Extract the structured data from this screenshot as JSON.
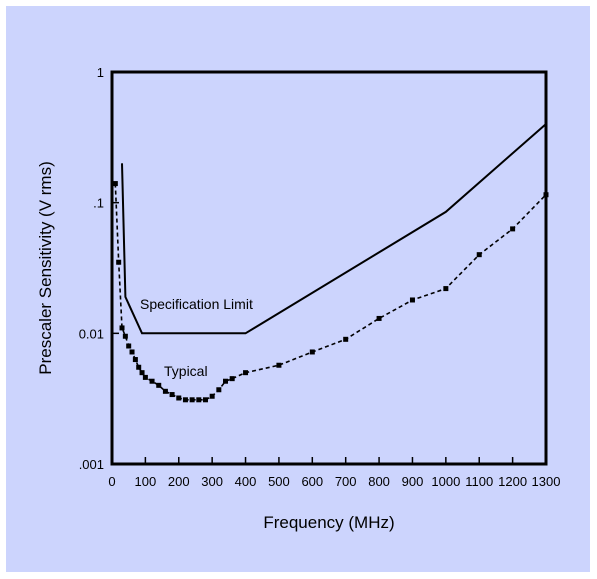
{
  "colors": {
    "background": "#ccd4fd",
    "page": "#ffffff",
    "axis": "#000000",
    "series": "#000000"
  },
  "chart_data": {
    "type": "line",
    "title": "",
    "xlabel": "Frequency (MHz)",
    "ylabel": "Prescaler Sensitivity (V rms)",
    "xlim": [
      0,
      1300
    ],
    "ylim": [
      0.001,
      1
    ],
    "y_scale": "log",
    "grid": false,
    "x_ticks": [
      0,
      100,
      200,
      300,
      400,
      500,
      600,
      700,
      800,
      900,
      1000,
      1100,
      1200,
      1300
    ],
    "x_tick_labels": [
      "0",
      "100",
      "200",
      "300",
      "400",
      "500",
      "600",
      "700",
      "800",
      "900",
      "1000",
      "1100",
      "1200",
      "1300"
    ],
    "y_ticks": [
      0.001,
      0.01,
      0.1,
      1
    ],
    "y_tick_labels": [
      ".001",
      "0.01",
      ".1",
      "1"
    ],
    "series": [
      {
        "name": "Specification Limit",
        "style": "solid",
        "marker": "none",
        "x": [
          30,
          40,
          90,
          400,
          1000,
          1300
        ],
        "y": [
          0.2,
          0.019,
          0.01,
          0.01,
          0.085,
          0.4
        ]
      },
      {
        "name": "Typical",
        "style": "dashed",
        "marker": "square",
        "x": [
          10,
          20,
          30,
          40,
          50,
          60,
          70,
          80,
          90,
          100,
          120,
          140,
          160,
          180,
          200,
          220,
          240,
          260,
          280,
          300,
          320,
          340,
          360,
          400,
          500,
          600,
          700,
          800,
          900,
          1000,
          1100,
          1200,
          1300
        ],
        "y": [
          0.14,
          0.035,
          0.011,
          0.0095,
          0.008,
          0.0072,
          0.0063,
          0.0055,
          0.005,
          0.0046,
          0.0043,
          0.004,
          0.0036,
          0.0034,
          0.0032,
          0.0031,
          0.0031,
          0.0031,
          0.0031,
          0.0033,
          0.0037,
          0.0043,
          0.0045,
          0.005,
          0.0057,
          0.0072,
          0.009,
          0.013,
          0.018,
          0.022,
          0.04,
          0.063,
          0.115
        ]
      }
    ]
  }
}
